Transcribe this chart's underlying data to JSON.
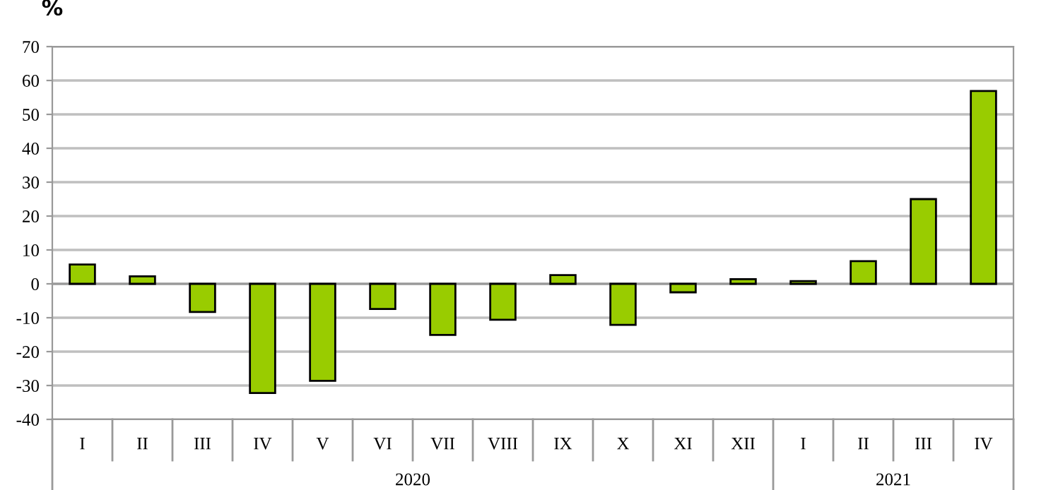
{
  "chart_data": {
    "type": "bar",
    "ylabel": "%",
    "categories": [
      "I",
      "II",
      "III",
      "IV",
      "V",
      "VI",
      "VII",
      "VIII",
      "IX",
      "X",
      "XI",
      "XII",
      "I",
      "II",
      "III",
      "IV"
    ],
    "values": [
      5.7,
      2.2,
      -8.3,
      -32.2,
      -28.6,
      -7.4,
      -15.1,
      -10.6,
      2.6,
      -12.1,
      -2.5,
      1.4,
      0.8,
      6.7,
      25,
      56.9
    ],
    "color": "#99cc00",
    "ylim": [
      -40,
      70
    ],
    "yticks": [
      -40,
      -30,
      -20,
      -10,
      0,
      10,
      20,
      30,
      40,
      50,
      60,
      70
    ],
    "grid": "y",
    "annotations": [
      "2020",
      "2021"
    ]
  }
}
